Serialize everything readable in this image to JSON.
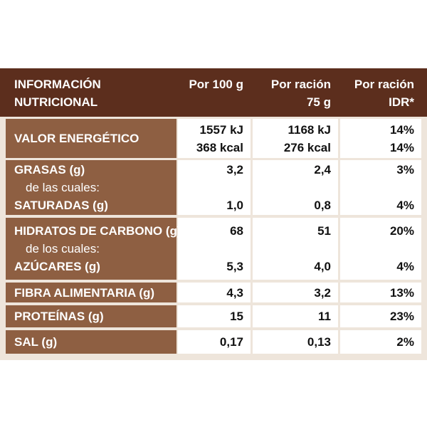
{
  "header": [
    [
      "INFORMACIÓN",
      "NUTRICIONAL"
    ],
    [
      "Por 100 g"
    ],
    [
      "Por ración",
      "75 g"
    ],
    [
      "Por ración",
      "IDR*"
    ]
  ],
  "rows": [
    {
      "label": [
        "VALOR ENERGÉTICO"
      ],
      "values": [
        [
          "1557 kJ",
          "368 kcal"
        ],
        [
          "1168 kJ",
          "276 kcal"
        ],
        [
          "14%",
          "14%"
        ]
      ]
    },
    {
      "label": [
        "GRASAS (g)",
        "de las cuales:",
        "SATURADAS (g)"
      ],
      "values": [
        [
          "3,2",
          null,
          "1,0"
        ],
        [
          "2,4",
          null,
          "0,8"
        ],
        [
          "3%",
          null,
          "4%"
        ]
      ]
    },
    {
      "label": [
        "HIDRATOS DE CARBONO (g)",
        "de los cuales:",
        "AZÚCARES (g)"
      ],
      "values": [
        [
          "68",
          null,
          "5,3"
        ],
        [
          "51",
          null,
          "4,0"
        ],
        [
          "20%",
          null,
          "4%"
        ]
      ]
    },
    {
      "label": [
        "FIBRA ALIMENTARIA (g)"
      ],
      "values": [
        [
          "4,3"
        ],
        [
          "3,2"
        ],
        [
          "13%"
        ]
      ]
    },
    {
      "label": [
        "PROTEÍNAS (g)"
      ],
      "values": [
        [
          "15"
        ],
        [
          "11"
        ],
        [
          "23%"
        ]
      ]
    },
    {
      "label": [
        "SAL (g)"
      ],
      "values": [
        [
          "0,17"
        ],
        [
          "0,13"
        ],
        [
          "2%"
        ]
      ]
    }
  ]
}
